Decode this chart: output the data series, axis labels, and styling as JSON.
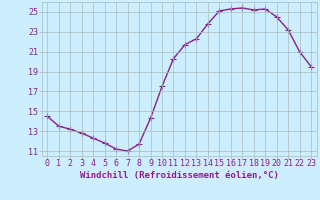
{
  "x": [
    0,
    1,
    2,
    3,
    4,
    5,
    6,
    7,
    8,
    9,
    10,
    11,
    12,
    13,
    14,
    15,
    16,
    17,
    18,
    19,
    20,
    21,
    22,
    23
  ],
  "y": [
    14.5,
    13.5,
    13.2,
    12.8,
    12.3,
    11.8,
    11.2,
    11.0,
    11.7,
    14.3,
    17.5,
    20.3,
    21.7,
    22.3,
    23.8,
    25.1,
    25.3,
    25.4,
    25.2,
    25.3,
    24.5,
    23.2,
    21.0,
    19.5
  ],
  "line_color": "#882288",
  "marker": "+",
  "marker_size": 4,
  "marker_linewidth": 0.8,
  "bg_color": "#cceeff",
  "grid_color": "#aabbbb",
  "xlabel": "Windchill (Refroidissement éolien,°C)",
  "ylabel": "",
  "xlim": [
    -0.5,
    23.5
  ],
  "ylim": [
    10.5,
    26.0
  ],
  "yticks": [
    11,
    13,
    15,
    17,
    19,
    21,
    23,
    25
  ],
  "xticks": [
    0,
    1,
    2,
    3,
    4,
    5,
    6,
    7,
    8,
    9,
    10,
    11,
    12,
    13,
    14,
    15,
    16,
    17,
    18,
    19,
    20,
    21,
    22,
    23
  ],
  "xlabel_fontsize": 6.5,
  "tick_fontsize": 6.0,
  "line_width": 1.0
}
